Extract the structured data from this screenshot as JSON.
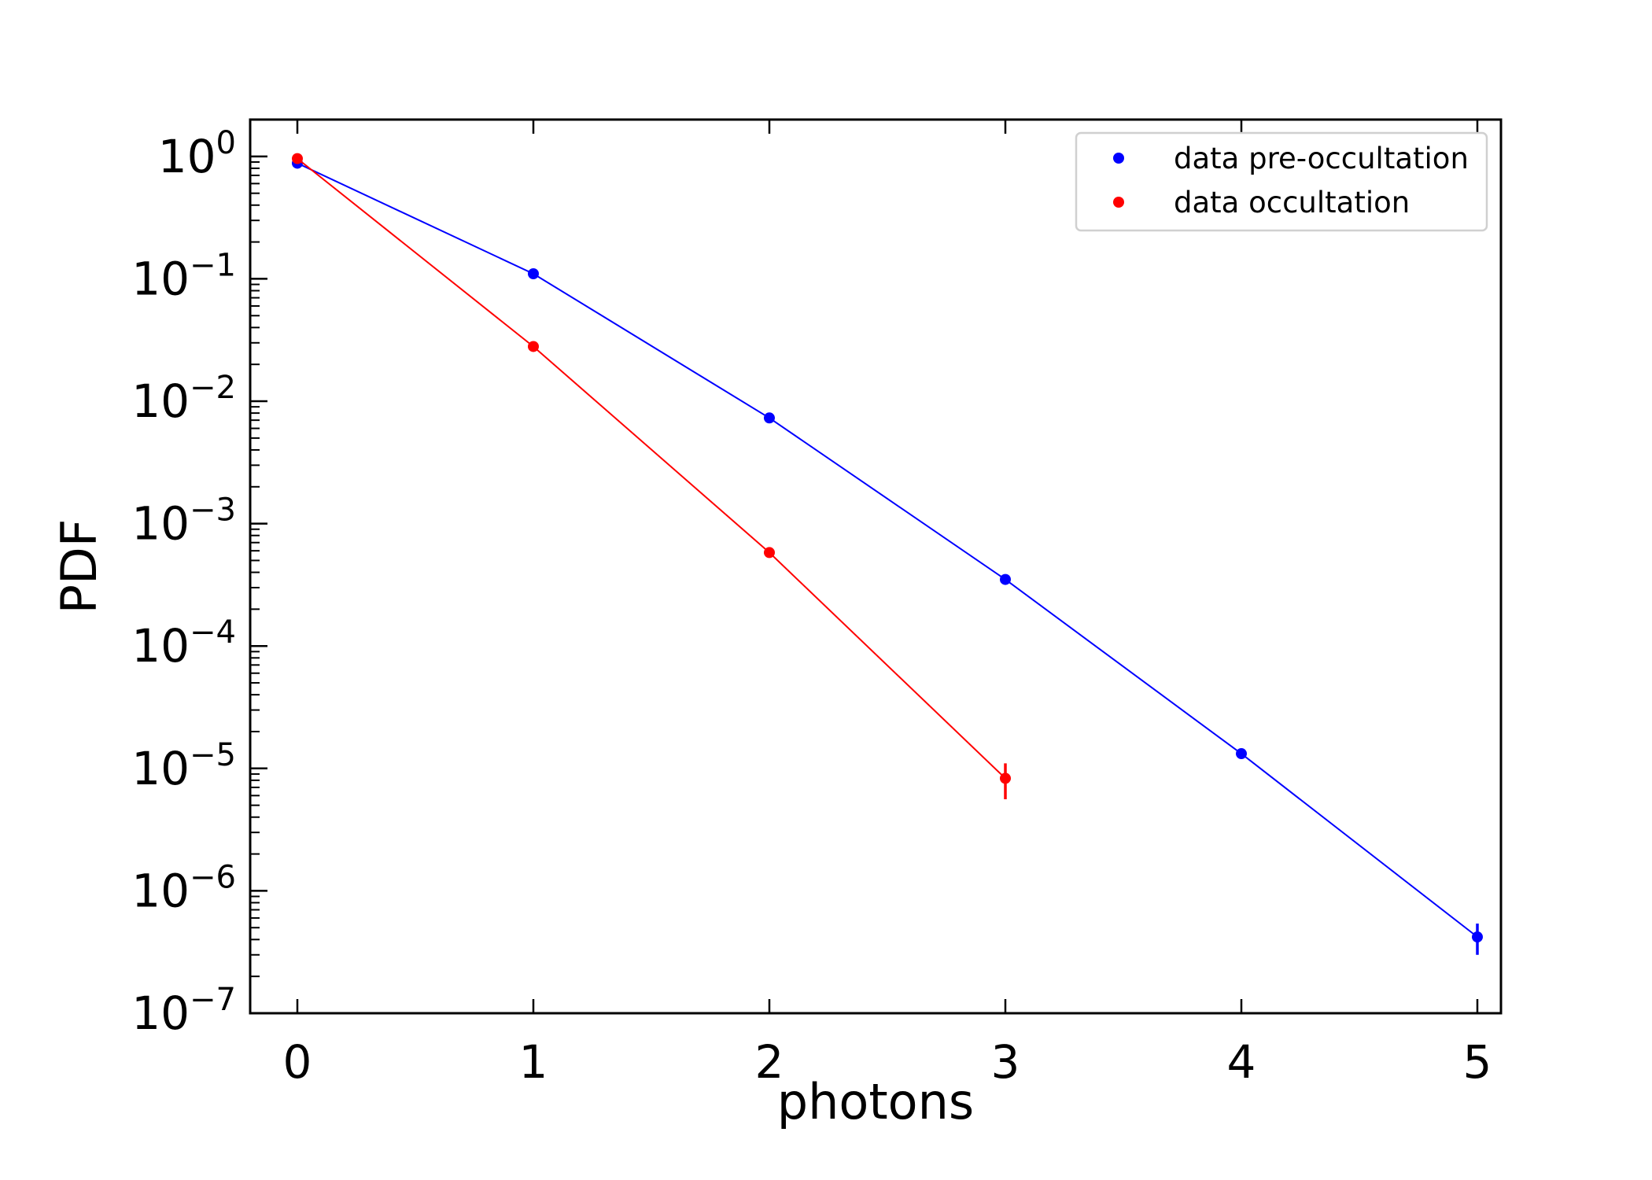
{
  "chart_data": {
    "type": "scatter",
    "title": "",
    "xlabel": "photons",
    "ylabel": "PDF",
    "xlim": [
      -0.2,
      5.1
    ],
    "ylim": [
      1e-07,
      2
    ],
    "yscale": "log",
    "x_ticks": [
      0,
      1,
      2,
      3,
      4,
      5
    ],
    "x_tick_labels": [
      "0",
      "1",
      "2",
      "3",
      "4",
      "5"
    ],
    "y_ticks": [
      1,
      0.1,
      0.01,
      0.001,
      0.0001,
      1e-05,
      1e-06,
      1e-07
    ],
    "y_tick_labels": [
      {
        "base": "10",
        "exp": "0"
      },
      {
        "base": "10",
        "exp": "−1"
      },
      {
        "base": "10",
        "exp": "−2"
      },
      {
        "base": "10",
        "exp": "−3"
      },
      {
        "base": "10",
        "exp": "−4"
      },
      {
        "base": "10",
        "exp": "−5"
      },
      {
        "base": "10",
        "exp": "−6"
      },
      {
        "base": "10",
        "exp": "−7"
      }
    ],
    "grid": false,
    "legend_position": "top-right",
    "series": [
      {
        "name": "data pre-occultation",
        "color": "#0000ff",
        "x": [
          0,
          1,
          2,
          3,
          4,
          5
        ],
        "y": [
          0.88,
          0.11,
          0.0073,
          0.00035,
          1.32e-05,
          4.2e-07
        ],
        "yerr": [
          [
            0,
            0,
            0,
            0,
            0,
            1.2e-07
          ],
          [
            0,
            0,
            0,
            0,
            0,
            1.2e-07
          ]
        ]
      },
      {
        "name": "data occultation",
        "color": "#ff0000",
        "x": [
          0,
          1,
          2,
          3
        ],
        "y": [
          0.96,
          0.028,
          0.00058,
          8.3e-06
        ],
        "yerr": [
          [
            0,
            0,
            0,
            2.7e-06
          ],
          [
            0,
            0,
            0,
            2.7e-06
          ]
        ]
      }
    ]
  }
}
